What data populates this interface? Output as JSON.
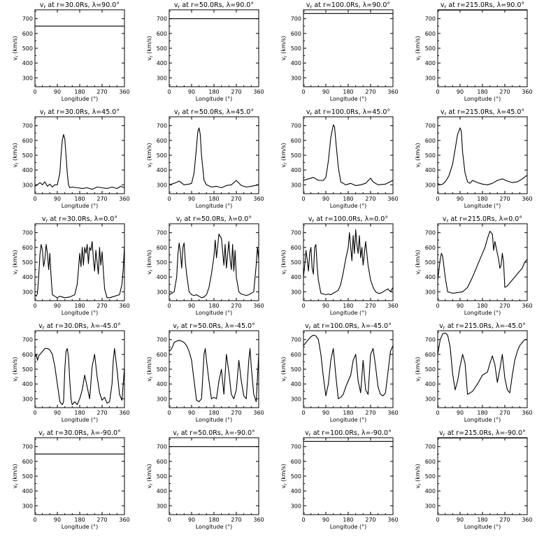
{
  "figure": {
    "rows": [
      {
        "lat": "λ=90.0°"
      },
      {
        "lat": "λ=45.0°"
      },
      {
        "lat": "λ=0.0°"
      },
      {
        "lat": "λ=-45.0°"
      },
      {
        "lat": "λ=-90.0°"
      }
    ],
    "cols": [
      {
        "r": "r=30.0Rs"
      },
      {
        "r": "r=50.0Rs"
      },
      {
        "r": "r=100.0Rs"
      },
      {
        "r": "r=215.0Rs"
      }
    ]
  },
  "chart_data": {
    "type": "line",
    "layout": "grid 5 rows x 4 columns",
    "title_template": "vr at {r}, {lat}",
    "xlabel": "Longitude (°)",
    "ylabel": "vr (km/s)",
    "xlim": [
      0,
      360
    ],
    "ylim": [
      240,
      760
    ],
    "xticks": [
      "0",
      "90",
      "180",
      "270",
      "360"
    ],
    "yticks": [
      "300",
      "400",
      "500",
      "600",
      "700"
    ],
    "grid": false,
    "legend": "none",
    "line_color": "#000000",
    "panels": [
      {
        "row": 0,
        "col": 0,
        "title": "vr at r=30.0Rs, λ=90.0°",
        "x": [
          0,
          360
        ],
        "y": [
          650,
          650
        ]
      },
      {
        "row": 0,
        "col": 1,
        "title": "vr at r=50.0Rs, λ=90.0°",
        "x": [
          0,
          360
        ],
        "y": [
          700,
          700
        ]
      },
      {
        "row": 0,
        "col": 2,
        "title": "vr at r=100.0Rs, λ=90.0°",
        "x": [
          0,
          360
        ],
        "y": [
          735,
          735
        ]
      },
      {
        "row": 0,
        "col": 3,
        "title": "vr at r=215.0Rs, λ=90.0°",
        "x": [
          0,
          360
        ],
        "y": [
          758,
          758
        ]
      },
      {
        "row": 1,
        "col": 0,
        "title": "vr at r=30.0Rs, λ=45.0°",
        "x": [
          0,
          10,
          20,
          30,
          40,
          50,
          60,
          70,
          80,
          90,
          100,
          105,
          110,
          115,
          120,
          125,
          130,
          135,
          140,
          150,
          170,
          190,
          210,
          230,
          250,
          270,
          290,
          310,
          330,
          345,
          360
        ],
        "y": [
          290,
          300,
          315,
          300,
          320,
          290,
          305,
          285,
          300,
          300,
          380,
          500,
          600,
          640,
          610,
          500,
          380,
          300,
          280,
          285,
          280,
          275,
          280,
          270,
          285,
          280,
          275,
          285,
          275,
          290,
          280
        ]
      },
      {
        "row": 1,
        "col": 1,
        "title": "vr at r=50.0Rs, λ=45.0°",
        "x": [
          0,
          20,
          40,
          60,
          80,
          90,
          100,
          110,
          115,
          120,
          125,
          130,
          140,
          150,
          170,
          190,
          210,
          230,
          250,
          270,
          290,
          310,
          330,
          360
        ],
        "y": [
          300,
          310,
          325,
          300,
          305,
          310,
          380,
          560,
          660,
          685,
          640,
          500,
          330,
          300,
          285,
          290,
          280,
          295,
          300,
          330,
          295,
          285,
          290,
          300
        ]
      },
      {
        "row": 1,
        "col": 2,
        "title": "vr at r=100.0Rs, λ=45.0°",
        "x": [
          0,
          20,
          40,
          60,
          80,
          90,
          100,
          110,
          120,
          125,
          130,
          140,
          150,
          170,
          190,
          210,
          230,
          250,
          270,
          280,
          300,
          330,
          360
        ],
        "y": [
          330,
          340,
          350,
          330,
          330,
          350,
          460,
          620,
          705,
          695,
          600,
          420,
          320,
          300,
          310,
          295,
          300,
          310,
          345,
          320,
          300,
          305,
          330
        ]
      },
      {
        "row": 1,
        "col": 3,
        "title": "vr at r=215.0Rs, λ=45.0°",
        "x": [
          0,
          10,
          20,
          30,
          45,
          60,
          70,
          80,
          90,
          95,
          100,
          110,
          120,
          130,
          140,
          160,
          180,
          200,
          220,
          240,
          260,
          280,
          300,
          320,
          340,
          360
        ],
        "y": [
          310,
          300,
          305,
          320,
          360,
          440,
          540,
          640,
          685,
          660,
          520,
          380,
          320,
          310,
          330,
          315,
          305,
          300,
          310,
          330,
          340,
          325,
          315,
          320,
          340,
          365
        ]
      },
      {
        "row": 2,
        "col": 0,
        "title": "vr at r=30.0Rs, λ=0.0°",
        "x": [
          0,
          5,
          10,
          15,
          20,
          25,
          30,
          35,
          40,
          45,
          50,
          55,
          60,
          65,
          70,
          80,
          90,
          100,
          120,
          140,
          160,
          170,
          175,
          180,
          185,
          190,
          195,
          200,
          205,
          210,
          215,
          220,
          225,
          230,
          235,
          240,
          245,
          250,
          255,
          260,
          265,
          270,
          280,
          290,
          300,
          320,
          340,
          350,
          355,
          360
        ],
        "y": [
          280,
          270,
          290,
          400,
          550,
          620,
          580,
          470,
          520,
          620,
          560,
          450,
          560,
          400,
          280,
          270,
          260,
          270,
          260,
          265,
          280,
          350,
          450,
          560,
          470,
          600,
          480,
          600,
          560,
          620,
          490,
          600,
          580,
          640,
          520,
          440,
          580,
          500,
          420,
          600,
          480,
          570,
          320,
          260,
          260,
          270,
          280,
          350,
          450,
          610
        ]
      },
      {
        "row": 2,
        "col": 1,
        "title": "vr at r=50.0Rs, λ=0.0°",
        "x": [
          0,
          10,
          20,
          30,
          35,
          40,
          45,
          50,
          55,
          60,
          65,
          70,
          80,
          90,
          100,
          110,
          120,
          130,
          140,
          150,
          160,
          170,
          180,
          185,
          190,
          200,
          210,
          220,
          225,
          230,
          240,
          245,
          250,
          255,
          260,
          265,
          270,
          280,
          290,
          300,
          310,
          320,
          340,
          350,
          355,
          360
        ],
        "y": [
          280,
          290,
          300,
          400,
          550,
          630,
          570,
          460,
          600,
          630,
          500,
          420,
          300,
          280,
          275,
          280,
          270,
          260,
          265,
          280,
          330,
          420,
          540,
          650,
          530,
          690,
          660,
          480,
          620,
          460,
          640,
          520,
          450,
          620,
          440,
          580,
          400,
          300,
          285,
          280,
          275,
          280,
          300,
          480,
          600,
          520
        ]
      },
      {
        "row": 2,
        "col": 2,
        "title": "vr at r=100.0Rs, λ=0.0°",
        "x": [
          0,
          5,
          10,
          15,
          20,
          25,
          30,
          35,
          40,
          45,
          50,
          55,
          60,
          70,
          80,
          90,
          100,
          110,
          120,
          130,
          140,
          150,
          160,
          170,
          180,
          185,
          190,
          195,
          200,
          205,
          210,
          215,
          220,
          225,
          230,
          235,
          240,
          245,
          250,
          260,
          270,
          280,
          290,
          300,
          310,
          320,
          330,
          340,
          350,
          360
        ],
        "y": [
          400,
          480,
          580,
          520,
          440,
          560,
          600,
          460,
          420,
          600,
          620,
          470,
          380,
          290,
          285,
          280,
          285,
          280,
          290,
          300,
          310,
          350,
          430,
          520,
          600,
          700,
          600,
          510,
          680,
          560,
          720,
          620,
          560,
          680,
          530,
          600,
          480,
          560,
          640,
          480,
          380,
          330,
          300,
          290,
          290,
          300,
          310,
          320,
          300,
          330
        ]
      },
      {
        "row": 2,
        "col": 3,
        "title": "vr at r=215.0Rs, λ=0.0°",
        "x": [
          0,
          5,
          10,
          15,
          20,
          30,
          40,
          50,
          60,
          80,
          100,
          120,
          140,
          160,
          170,
          180,
          190,
          200,
          210,
          220,
          225,
          230,
          240,
          245,
          250,
          255,
          260,
          265,
          270,
          280,
          290,
          300,
          320,
          340,
          350,
          360
        ],
        "y": [
          380,
          450,
          520,
          560,
          540,
          400,
          300,
          295,
          290,
          295,
          300,
          330,
          400,
          480,
          520,
          560,
          600,
          660,
          710,
          690,
          580,
          640,
          560,
          520,
          460,
          480,
          560,
          500,
          330,
          340,
          360,
          380,
          420,
          460,
          500,
          520
        ]
      },
      {
        "row": 3,
        "col": 0,
        "title": "vr at r=30.0Rs, λ=-45.0°",
        "x": [
          0,
          5,
          10,
          15,
          20,
          30,
          40,
          50,
          60,
          70,
          80,
          90,
          100,
          110,
          115,
          120,
          125,
          130,
          135,
          140,
          145,
          150,
          160,
          170,
          180,
          190,
          200,
          210,
          220,
          230,
          240,
          250,
          260,
          270,
          280,
          290,
          300,
          310,
          315,
          320,
          330,
          340,
          350,
          360
        ],
        "y": [
          580,
          600,
          560,
          590,
          600,
          620,
          640,
          640,
          630,
          600,
          520,
          400,
          280,
          260,
          280,
          500,
          620,
          640,
          580,
          420,
          300,
          260,
          280,
          260,
          300,
          360,
          460,
          380,
          300,
          520,
          600,
          450,
          340,
          290,
          310,
          270,
          280,
          400,
          560,
          640,
          500,
          330,
          290,
          510
        ]
      },
      {
        "row": 3,
        "col": 1,
        "title": "vr at r=50.0Rs, λ=-45.0°",
        "x": [
          0,
          10,
          20,
          30,
          40,
          50,
          60,
          70,
          80,
          90,
          100,
          110,
          120,
          130,
          140,
          145,
          150,
          160,
          170,
          180,
          190,
          200,
          210,
          220,
          230,
          240,
          250,
          260,
          270,
          280,
          290,
          300,
          310,
          320,
          325,
          330,
          340,
          350,
          360
        ],
        "y": [
          620,
          640,
          680,
          690,
          695,
          690,
          680,
          660,
          620,
          560,
          420,
          290,
          280,
          300,
          600,
          640,
          560,
          420,
          300,
          310,
          300,
          420,
          500,
          330,
          600,
          480,
          330,
          300,
          360,
          560,
          420,
          320,
          300,
          560,
          640,
          520,
          330,
          280,
          600
        ]
      },
      {
        "row": 3,
        "col": 2,
        "title": "vr at r=100.0Rs, λ=-45.0°",
        "x": [
          0,
          10,
          20,
          30,
          40,
          50,
          60,
          70,
          80,
          90,
          100,
          110,
          120,
          130,
          140,
          150,
          160,
          170,
          180,
          190,
          200,
          210,
          220,
          230,
          240,
          250,
          260,
          270,
          280,
          290,
          300,
          310,
          320,
          330,
          340,
          350,
          360
        ],
        "y": [
          660,
          680,
          700,
          720,
          730,
          725,
          700,
          600,
          450,
          320,
          400,
          560,
          640,
          460,
          300,
          310,
          330,
          380,
          420,
          460,
          560,
          600,
          420,
          340,
          560,
          360,
          330,
          600,
          640,
          520,
          380,
          330,
          320,
          340,
          480,
          620,
          660
        ]
      },
      {
        "row": 3,
        "col": 3,
        "title": "vr at r=215.0Rs, λ=-45.0°",
        "x": [
          0,
          10,
          20,
          30,
          40,
          50,
          60,
          70,
          80,
          90,
          100,
          110,
          120,
          140,
          160,
          180,
          200,
          210,
          220,
          230,
          240,
          250,
          260,
          270,
          280,
          290,
          300,
          310,
          320,
          330,
          340,
          350,
          360
        ],
        "y": [
          600,
          700,
          740,
          745,
          730,
          650,
          470,
          360,
          420,
          520,
          600,
          540,
          330,
          350,
          400,
          460,
          480,
          540,
          590,
          530,
          410,
          500,
          600,
          440,
          360,
          340,
          460,
          560,
          620,
          660,
          680,
          700,
          700
        ]
      },
      {
        "row": 4,
        "col": 0,
        "title": "vr at r=30.0Rs, λ=-90.0°",
        "x": [
          0,
          360
        ],
        "y": [
          650,
          650
        ]
      },
      {
        "row": 4,
        "col": 1,
        "title": "vr at r=50.0Rs, λ=-90.0°",
        "x": [
          0,
          360
        ],
        "y": [
          700,
          700
        ]
      },
      {
        "row": 4,
        "col": 2,
        "title": "vr at r=100.0Rs, λ=-90.0°",
        "x": [
          0,
          360
        ],
        "y": [
          735,
          735
        ]
      },
      {
        "row": 4,
        "col": 3,
        "title": "vr at r=215.0Rs, λ=-90.0°",
        "x": [
          0,
          360
        ],
        "y": [
          758,
          758
        ]
      }
    ]
  }
}
